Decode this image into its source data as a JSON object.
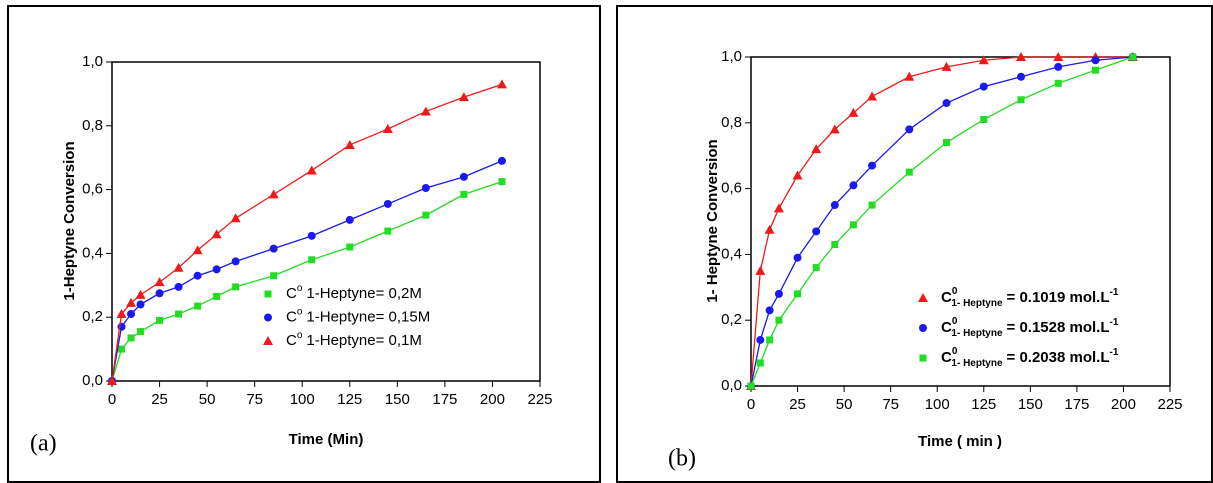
{
  "chart_data": [
    {
      "type": "scatter",
      "panel_label": "(a)",
      "x_label": "Time (Min)",
      "y_label": "1-Heptyne Conversion",
      "x": [
        0,
        5,
        10,
        15,
        25,
        35,
        45,
        55,
        65,
        85,
        105,
        125,
        145,
        165,
        185,
        205
      ],
      "xlim": [
        0,
        225
      ],
      "xticks": [
        0,
        25,
        50,
        75,
        100,
        125,
        150,
        175,
        200,
        225
      ],
      "ylim": [
        0,
        1.0
      ],
      "yticks": [
        {
          "value": 0,
          "label": "0,0"
        },
        {
          "value": 0.2,
          "label": "0,2"
        },
        {
          "value": 0.4,
          "label": "0,4"
        },
        {
          "value": 0.6,
          "label": "0,6"
        },
        {
          "value": 0.8,
          "label": "0,8"
        },
        {
          "value": 1.0,
          "label": "1,0"
        }
      ],
      "series": [
        {
          "name": [
            "C",
            "o",
            "1-Heptyne= 0,2M"
          ],
          "color": "#22dd22",
          "marker": "square",
          "values": [
            0,
            0.1,
            0.135,
            0.155,
            0.19,
            0.21,
            0.235,
            0.265,
            0.295,
            0.33,
            0.38,
            0.42,
            0.47,
            0.52,
            0.585,
            0.625
          ]
        },
        {
          "name": [
            "C",
            "o",
            "1-Heptyne= 0,15M"
          ],
          "color": "#1a1aee",
          "marker": "circle",
          "values": [
            0,
            0.17,
            0.21,
            0.24,
            0.275,
            0.295,
            0.33,
            0.35,
            0.375,
            0.415,
            0.455,
            0.505,
            0.555,
            0.605,
            0.64,
            0.69
          ]
        },
        {
          "name": [
            "C",
            "o",
            "1-Heptyne= 0,1M"
          ],
          "color": "#ee1a1a",
          "marker": "triangle",
          "values": [
            0,
            0.21,
            0.245,
            0.27,
            0.31,
            0.355,
            0.41,
            0.46,
            0.51,
            0.585,
            0.66,
            0.74,
            0.79,
            0.845,
            0.89,
            0.93
          ]
        }
      ]
    },
    {
      "type": "scatter",
      "panel_label": "(b)",
      "x_label": "Time ( min )",
      "y_label": "1- Heptyne Conversion",
      "x": [
        0,
        5,
        10,
        15,
        25,
        35,
        45,
        55,
        65,
        85,
        105,
        125,
        145,
        165,
        185,
        205
      ],
      "xlim": [
        0,
        225
      ],
      "xticks": [
        0,
        25,
        50,
        75,
        100,
        125,
        150,
        175,
        200,
        225
      ],
      "ylim": [
        0,
        1.0
      ],
      "yticks": [
        {
          "value": 0,
          "label": "0,0"
        },
        {
          "value": 0.2,
          "label": "0,2"
        },
        {
          "value": 0.4,
          "label": "0,4"
        },
        {
          "value": 0.6,
          "label": "0,6"
        },
        {
          "value": 0.8,
          "label": "0,8"
        },
        {
          "value": 1.0,
          "label": "1,0"
        }
      ],
      "series": [
        {
          "name": [
            "C",
            "0",
            "1- Heptyne",
            "= 0.1019 mol.L",
            "-1"
          ],
          "color": "#ee1a1a",
          "marker": "triangle",
          "values": [
            0,
            0.35,
            0.475,
            0.54,
            0.64,
            0.72,
            0.78,
            0.83,
            0.88,
            0.94,
            0.97,
            0.99,
            1.0,
            1.0,
            1.0,
            1.0
          ]
        },
        {
          "name": [
            "C",
            "0",
            "1- Heptyne",
            "= 0.1528 mol.L",
            "-1"
          ],
          "color": "#1a1aee",
          "marker": "circle",
          "values": [
            0,
            0.14,
            0.23,
            0.28,
            0.39,
            0.47,
            0.55,
            0.61,
            0.67,
            0.78,
            0.86,
            0.91,
            0.94,
            0.97,
            0.99,
            1.0
          ]
        },
        {
          "name": [
            "C",
            "0",
            "1- Heptyne",
            "= 0.2038 mol.L",
            "-1"
          ],
          "color": "#22dd22",
          "marker": "square",
          "values": [
            0,
            0.07,
            0.14,
            0.2,
            0.28,
            0.36,
            0.43,
            0.49,
            0.55,
            0.65,
            0.74,
            0.81,
            0.87,
            0.92,
            0.96,
            1.0
          ]
        }
      ]
    }
  ]
}
